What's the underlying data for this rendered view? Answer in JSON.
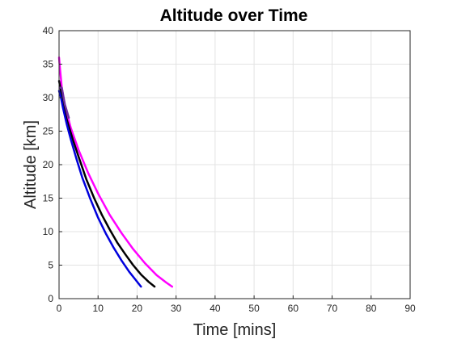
{
  "chart_data": {
    "type": "line",
    "title": "Altitude over Time",
    "xlabel": "Time [mins]",
    "ylabel": "Altitude [km]",
    "xlim": [
      0,
      90
    ],
    "ylim": [
      0,
      40
    ],
    "xticks": [
      0,
      10,
      20,
      30,
      40,
      50,
      60,
      70,
      80,
      90
    ],
    "yticks": [
      0,
      5,
      10,
      15,
      20,
      25,
      30,
      35,
      40
    ],
    "grid": true,
    "series": [
      {
        "color": "#FF00FF",
        "x": [
          0,
          0.3,
          0.7,
          1.5,
          3,
          5,
          7.5,
          10,
          13,
          16,
          19,
          22,
          25,
          27.5,
          29
        ],
        "y": [
          36,
          34,
          31.5,
          28.8,
          25.5,
          22.2,
          18.7,
          15.7,
          12.5,
          9.8,
          7.4,
          5.3,
          3.5,
          2.4,
          1.8
        ]
      },
      {
        "color": "#000000",
        "x": [
          0,
          0.5,
          1,
          2,
          3.5,
          5,
          7,
          9,
          11,
          13,
          15,
          17,
          19,
          21,
          23,
          24.5
        ],
        "y": [
          32.5,
          31,
          29,
          26.7,
          23.8,
          21.2,
          17.8,
          15,
          12.5,
          10.3,
          8.3,
          6.6,
          5,
          3.6,
          2.5,
          1.8
        ]
      },
      {
        "color": "#0000DD",
        "x": [
          0,
          0.5,
          1,
          2,
          3,
          4.5,
          6,
          8,
          10,
          12,
          14,
          16,
          18,
          19.5,
          21
        ],
        "y": [
          31,
          30,
          28.5,
          26,
          23.8,
          20.8,
          18,
          14.9,
          12.1,
          9.7,
          7.6,
          5.7,
          4,
          2.9,
          1.8
        ]
      },
      {
        "color": "#7030A0",
        "x": [
          0.2,
          0.7,
          1.5,
          2.5
        ],
        "y": [
          31.5,
          31.5,
          29,
          27
        ]
      },
      {
        "color": "#FF0000",
        "x": [
          90,
          90
        ],
        "y": [
          0,
          40
        ]
      }
    ]
  }
}
